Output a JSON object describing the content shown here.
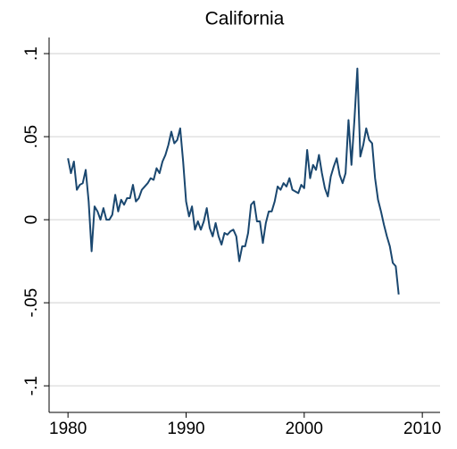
{
  "chart_data": {
    "type": "line",
    "title": "California",
    "x": [
      1980,
      1980.25,
      1980.5,
      1980.75,
      1981,
      1981.25,
      1981.5,
      1981.75,
      1982,
      1982.25,
      1982.5,
      1982.75,
      1983,
      1983.25,
      1983.5,
      1983.75,
      1984,
      1984.25,
      1984.5,
      1984.75,
      1985,
      1985.25,
      1985.5,
      1985.75,
      1986,
      1986.25,
      1986.5,
      1986.75,
      1987,
      1987.25,
      1987.5,
      1987.75,
      1988,
      1988.25,
      1988.5,
      1988.75,
      1989,
      1989.25,
      1989.5,
      1989.75,
      1990,
      1990.25,
      1990.5,
      1990.75,
      1991,
      1991.25,
      1991.5,
      1991.75,
      1992,
      1992.25,
      1992.5,
      1992.75,
      1993,
      1993.25,
      1993.5,
      1993.75,
      1994,
      1994.25,
      1994.5,
      1994.75,
      1995,
      1995.25,
      1995.5,
      1995.75,
      1996,
      1996.25,
      1996.5,
      1996.75,
      1997,
      1997.25,
      1997.5,
      1997.75,
      1998,
      1998.25,
      1998.5,
      1998.75,
      1999,
      1999.25,
      1999.5,
      1999.75,
      2000,
      2000.25,
      2000.5,
      2000.75,
      2001,
      2001.25,
      2001.5,
      2001.75,
      2002,
      2002.25,
      2002.5,
      2002.75,
      2003,
      2003.25,
      2003.5,
      2003.75,
      2004,
      2004.25,
      2004.5,
      2004.75,
      2005,
      2005.25,
      2005.5,
      2005.75,
      2006,
      2006.25,
      2006.5,
      2006.75,
      2007,
      2007.25,
      2007.5,
      2007.75,
      2008
    ],
    "series": [
      {
        "color": "#1a476f",
        "values": [
          0.037,
          0.028,
          0.035,
          0.018,
          0.021,
          0.022,
          0.03,
          0.011,
          -0.019,
          0.008,
          0.005,
          0,
          0.007,
          0,
          0,
          0.003,
          0.015,
          0.005,
          0.012,
          0.009,
          0.013,
          0.013,
          0.021,
          0.011,
          0.013,
          0.018,
          0.02,
          0.022,
          0.025,
          0.024,
          0.031,
          0.028,
          0.035,
          0.039,
          0.045,
          0.053,
          0.046,
          0.048,
          0.055,
          0.035,
          0.011,
          0.002,
          0.008,
          -0.006,
          -0.001,
          -0.006,
          -0.001,
          0.007,
          -0.005,
          -0.01,
          -0.002,
          -0.01,
          -0.015,
          -0.008,
          -0.009,
          -0.007,
          -0.006,
          -0.01,
          -0.025,
          -0.016,
          -0.016,
          -0.008,
          0.009,
          0.011,
          -0.001,
          -0.001,
          -0.014,
          -0.002,
          0.005,
          0.005,
          0.011,
          0.02,
          0.018,
          0.022,
          0.02,
          0.025,
          0.018,
          0.017,
          0.016,
          0.021,
          0.019,
          0.042,
          0.025,
          0.033,
          0.03,
          0.039,
          0.028,
          0.019,
          0.014,
          0.026,
          0.032,
          0.037,
          0.027,
          0.022,
          0.028,
          0.06,
          0.033,
          0.06,
          0.091,
          0.038,
          0.045,
          0.055,
          0.048,
          0.046,
          0.025,
          0.012,
          0.005,
          -0.003,
          -0.01,
          -0.016,
          -0.026,
          -0.028,
          -0.045
        ]
      }
    ],
    "xlim": [
      1978.4,
      2011.5
    ],
    "xticks": [
      1980,
      1990,
      2000,
      2010
    ],
    "ylim": [
      -0.116,
      0.1097
    ],
    "yticks": [
      {
        "value": -0.1,
        "label": "-.1"
      },
      {
        "value": -0.05,
        "label": "-.05"
      },
      0,
      {
        "value": 0.05,
        "label": ".05"
      },
      {
        "value": 0.1,
        "label": ".1"
      }
    ],
    "grid": true
  }
}
